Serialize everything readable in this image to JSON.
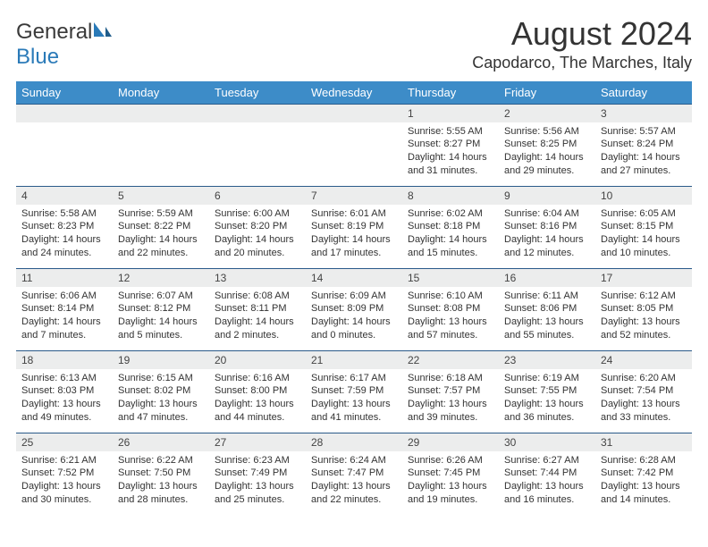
{
  "brand": {
    "text1": "General",
    "text2": "Blue"
  },
  "title": "August 2024",
  "location": "Capodarco, The Marches, Italy",
  "header_color": "#3d8cc8",
  "border_color": "#2a5a8a",
  "daynum_bg": "#eceded",
  "weekdays": [
    "Sunday",
    "Monday",
    "Tuesday",
    "Wednesday",
    "Thursday",
    "Friday",
    "Saturday"
  ],
  "weeks": [
    [
      null,
      null,
      null,
      null,
      {
        "n": "1",
        "sr": "5:55 AM",
        "ss": "8:27 PM",
        "dl": "14 hours and 31 minutes."
      },
      {
        "n": "2",
        "sr": "5:56 AM",
        "ss": "8:25 PM",
        "dl": "14 hours and 29 minutes."
      },
      {
        "n": "3",
        "sr": "5:57 AM",
        "ss": "8:24 PM",
        "dl": "14 hours and 27 minutes."
      }
    ],
    [
      {
        "n": "4",
        "sr": "5:58 AM",
        "ss": "8:23 PM",
        "dl": "14 hours and 24 minutes."
      },
      {
        "n": "5",
        "sr": "5:59 AM",
        "ss": "8:22 PM",
        "dl": "14 hours and 22 minutes."
      },
      {
        "n": "6",
        "sr": "6:00 AM",
        "ss": "8:20 PM",
        "dl": "14 hours and 20 minutes."
      },
      {
        "n": "7",
        "sr": "6:01 AM",
        "ss": "8:19 PM",
        "dl": "14 hours and 17 minutes."
      },
      {
        "n": "8",
        "sr": "6:02 AM",
        "ss": "8:18 PM",
        "dl": "14 hours and 15 minutes."
      },
      {
        "n": "9",
        "sr": "6:04 AM",
        "ss": "8:16 PM",
        "dl": "14 hours and 12 minutes."
      },
      {
        "n": "10",
        "sr": "6:05 AM",
        "ss": "8:15 PM",
        "dl": "14 hours and 10 minutes."
      }
    ],
    [
      {
        "n": "11",
        "sr": "6:06 AM",
        "ss": "8:14 PM",
        "dl": "14 hours and 7 minutes."
      },
      {
        "n": "12",
        "sr": "6:07 AM",
        "ss": "8:12 PM",
        "dl": "14 hours and 5 minutes."
      },
      {
        "n": "13",
        "sr": "6:08 AM",
        "ss": "8:11 PM",
        "dl": "14 hours and 2 minutes."
      },
      {
        "n": "14",
        "sr": "6:09 AM",
        "ss": "8:09 PM",
        "dl": "14 hours and 0 minutes."
      },
      {
        "n": "15",
        "sr": "6:10 AM",
        "ss": "8:08 PM",
        "dl": "13 hours and 57 minutes."
      },
      {
        "n": "16",
        "sr": "6:11 AM",
        "ss": "8:06 PM",
        "dl": "13 hours and 55 minutes."
      },
      {
        "n": "17",
        "sr": "6:12 AM",
        "ss": "8:05 PM",
        "dl": "13 hours and 52 minutes."
      }
    ],
    [
      {
        "n": "18",
        "sr": "6:13 AM",
        "ss": "8:03 PM",
        "dl": "13 hours and 49 minutes."
      },
      {
        "n": "19",
        "sr": "6:15 AM",
        "ss": "8:02 PM",
        "dl": "13 hours and 47 minutes."
      },
      {
        "n": "20",
        "sr": "6:16 AM",
        "ss": "8:00 PM",
        "dl": "13 hours and 44 minutes."
      },
      {
        "n": "21",
        "sr": "6:17 AM",
        "ss": "7:59 PM",
        "dl": "13 hours and 41 minutes."
      },
      {
        "n": "22",
        "sr": "6:18 AM",
        "ss": "7:57 PM",
        "dl": "13 hours and 39 minutes."
      },
      {
        "n": "23",
        "sr": "6:19 AM",
        "ss": "7:55 PM",
        "dl": "13 hours and 36 minutes."
      },
      {
        "n": "24",
        "sr": "6:20 AM",
        "ss": "7:54 PM",
        "dl": "13 hours and 33 minutes."
      }
    ],
    [
      {
        "n": "25",
        "sr": "6:21 AM",
        "ss": "7:52 PM",
        "dl": "13 hours and 30 minutes."
      },
      {
        "n": "26",
        "sr": "6:22 AM",
        "ss": "7:50 PM",
        "dl": "13 hours and 28 minutes."
      },
      {
        "n": "27",
        "sr": "6:23 AM",
        "ss": "7:49 PM",
        "dl": "13 hours and 25 minutes."
      },
      {
        "n": "28",
        "sr": "6:24 AM",
        "ss": "7:47 PM",
        "dl": "13 hours and 22 minutes."
      },
      {
        "n": "29",
        "sr": "6:26 AM",
        "ss": "7:45 PM",
        "dl": "13 hours and 19 minutes."
      },
      {
        "n": "30",
        "sr": "6:27 AM",
        "ss": "7:44 PM",
        "dl": "13 hours and 16 minutes."
      },
      {
        "n": "31",
        "sr": "6:28 AM",
        "ss": "7:42 PM",
        "dl": "13 hours and 14 minutes."
      }
    ]
  ],
  "labels": {
    "sunrise": "Sunrise:",
    "sunset": "Sunset:",
    "daylight": "Daylight:"
  }
}
